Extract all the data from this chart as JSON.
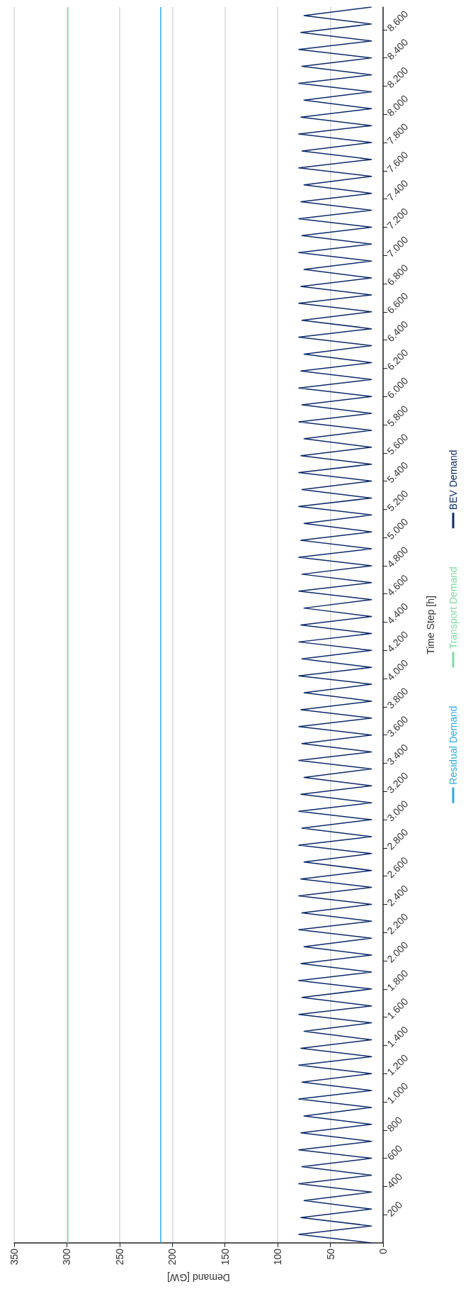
{
  "chart_data": {
    "type": "line",
    "xlabel": "Demand [GW]",
    "ylabel": "Time Step [h]",
    "xlim": [
      350,
      0
    ],
    "ylim": [
      0,
      8760
    ],
    "xticks": [
      0,
      50,
      100,
      150,
      200,
      250,
      300,
      350
    ],
    "yticks": [
      200,
      400,
      600,
      800,
      {
        "value": 1000,
        "label": "1.000"
      },
      {
        "value": 1200,
        "label": "1.200"
      },
      {
        "value": 1400,
        "label": "1.400"
      },
      {
        "value": 1600,
        "label": "1.600"
      },
      {
        "value": 1800,
        "label": "1.800"
      },
      {
        "value": 2000,
        "label": "2.000"
      },
      {
        "value": 2200,
        "label": "2.200"
      },
      {
        "value": 2400,
        "label": "2.400"
      },
      {
        "value": 2600,
        "label": "2.600"
      },
      {
        "value": 2800,
        "label": "2.800"
      },
      {
        "value": 3000,
        "label": "3.000"
      },
      {
        "value": 3200,
        "label": "3.200"
      },
      {
        "value": 3400,
        "label": "3.400"
      },
      {
        "value": 3600,
        "label": "3.600"
      },
      {
        "value": 3800,
        "label": "3.800"
      },
      {
        "value": 4000,
        "label": "4.000"
      },
      {
        "value": 4200,
        "label": "4.200"
      },
      {
        "value": 4400,
        "label": "4.400"
      },
      {
        "value": 4600,
        "label": "4.600"
      },
      {
        "value": 4800,
        "label": "4.800"
      },
      {
        "value": 5000,
        "label": "5.000"
      },
      {
        "value": 5200,
        "label": "5.200"
      },
      {
        "value": 5400,
        "label": "5.400"
      },
      {
        "value": 5600,
        "label": "5.600"
      },
      {
        "value": 5800,
        "label": "5.800"
      },
      {
        "value": 6000,
        "label": "6.000"
      },
      {
        "value": 6200,
        "label": "6.200"
      },
      {
        "value": 6400,
        "label": "6.400"
      },
      {
        "value": 6600,
        "label": "6.600"
      },
      {
        "value": 6800,
        "label": "6.800"
      },
      {
        "value": 7000,
        "label": "7.000"
      },
      {
        "value": 7200,
        "label": "7.200"
      },
      {
        "value": 7400,
        "label": "7.400"
      },
      {
        "value": 7600,
        "label": "7.600"
      },
      {
        "value": 7800,
        "label": "7.800"
      },
      {
        "value": 8000,
        "label": "8.000"
      },
      {
        "value": 8200,
        "label": "8.200"
      },
      {
        "value": 8400,
        "label": "8.400"
      },
      {
        "value": 8600,
        "label": "8.600"
      }
    ],
    "grid": "x",
    "legend": "right",
    "marker": "none",
    "series": [
      {
        "name": "Residual Demand",
        "color": "#29abe2",
        "x": [
          211,
          211
        ],
        "values": [
          0,
          8760
        ]
      },
      {
        "name": "Transport Demand",
        "color": "#7fdca0",
        "x": [
          299,
          299
        ],
        "values": [
          0,
          8760
        ]
      },
      {
        "name": "BEV Demand",
        "color": "#0b2a6b",
        "values": [
          0,
          60,
          120,
          180,
          240,
          300,
          360,
          420,
          480,
          540,
          600,
          660,
          720,
          780,
          840,
          900,
          960,
          1020,
          1080,
          1140,
          1200,
          1260,
          1320,
          1380,
          1440,
          1500,
          1560,
          1620,
          1680,
          1740,
          1800,
          1860,
          1920,
          1980,
          2040,
          2100,
          2160,
          2220,
          2280,
          2340,
          2400,
          2460,
          2520,
          2580,
          2640,
          2700,
          2760,
          2820,
          2880,
          2940,
          3000,
          3060,
          3120,
          3180,
          3240,
          3300,
          3360,
          3420,
          3480,
          3540,
          3600,
          3660,
          3720,
          3780,
          3840,
          3900,
          3960,
          4020,
          4080,
          4140,
          4200,
          4260,
          4320,
          4380,
          4440,
          4500,
          4560,
          4620,
          4680,
          4740,
          4800,
          4860,
          4920,
          4980,
          5040,
          5100,
          5160,
          5220,
          5280,
          5340,
          5400,
          5460,
          5520,
          5580,
          5640,
          5700,
          5760,
          5820,
          5880,
          5940,
          6000,
          6060,
          6120,
          6180,
          6240,
          6300,
          6360,
          6420,
          6480,
          6540,
          6600,
          6660,
          6720,
          6780,
          6840,
          6900,
          6960,
          7020,
          7080,
          7140,
          7200,
          7260,
          7320,
          7380,
          7440,
          7500,
          7560,
          7620,
          7680,
          7740,
          7800,
          7860,
          7920,
          7980,
          8040,
          8100,
          8160,
          8220,
          8280,
          8340,
          8400,
          8460,
          8520,
          8580,
          8640,
          8700,
          8760
        ],
        "x": [
          11,
          80,
          11,
          78,
          11,
          75,
          11,
          80,
          11,
          77,
          11,
          80,
          11,
          78,
          11,
          75,
          11,
          80,
          11,
          77,
          11,
          80,
          11,
          78,
          11,
          75,
          11,
          80,
          11,
          77,
          11,
          80,
          11,
          78,
          11,
          75,
          11,
          80,
          11,
          77,
          11,
          80,
          11,
          78,
          11,
          75,
          11,
          80,
          11,
          77,
          11,
          80,
          11,
          78,
          11,
          75,
          11,
          80,
          11,
          77,
          11,
          80,
          11,
          78,
          11,
          75,
          11,
          80,
          11,
          77,
          11,
          80,
          11,
          78,
          11,
          75,
          11,
          80,
          11,
          77,
          11,
          80,
          11,
          78,
          11,
          75,
          11,
          80,
          11,
          77,
          11,
          80,
          11,
          78,
          11,
          75,
          11,
          80,
          11,
          77,
          11,
          80,
          11,
          78,
          11,
          75,
          11,
          80,
          11,
          77,
          11,
          80,
          11,
          78,
          11,
          75,
          11,
          80,
          11,
          77,
          11,
          80,
          11,
          78,
          11,
          75,
          11,
          80,
          11,
          77,
          11,
          80,
          11,
          78,
          11,
          75,
          11,
          80,
          11,
          77,
          11,
          80,
          11,
          78,
          11,
          75,
          11
        ]
      }
    ]
  }
}
